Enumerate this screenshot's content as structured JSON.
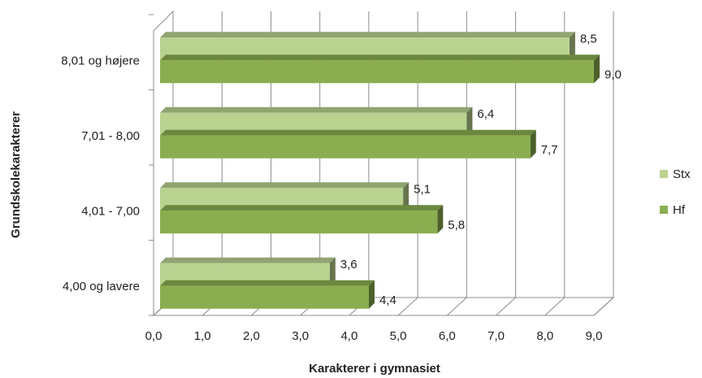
{
  "chart_data": {
    "type": "bar",
    "orientation": "horizontal",
    "style": "3d-clustered",
    "categories": [
      "4,00 og lavere",
      "4,01 - 7,00",
      "7,01 - 8,00",
      "8,01 og højere"
    ],
    "series": [
      {
        "name": "Stx",
        "values": [
          3.6,
          5.1,
          6.4,
          8.5
        ],
        "color": "#B9D290"
      },
      {
        "name": "Hf",
        "values": [
          4.4,
          5.8,
          7.7,
          9.0
        ],
        "color": "#8AAE4F"
      }
    ],
    "data_labels": {
      "Stx": [
        "3,6",
        "5,1",
        "6,4",
        "8,5"
      ],
      "Hf": [
        "4,4",
        "5,8",
        "7,7",
        "9,0"
      ]
    },
    "x_ticks": [
      "0,0",
      "1,0",
      "2,0",
      "3,0",
      "4,0",
      "5,0",
      "6,0",
      "7,0",
      "8,0",
      "9,0"
    ],
    "xlim": [
      0,
      9
    ],
    "xlabel": "Karakterer i gymnasiet",
    "ylabel": "Grundskolekarakterer",
    "grid": true,
    "legend": {
      "position": "right",
      "entries": [
        "Stx",
        "Hf"
      ]
    }
  }
}
